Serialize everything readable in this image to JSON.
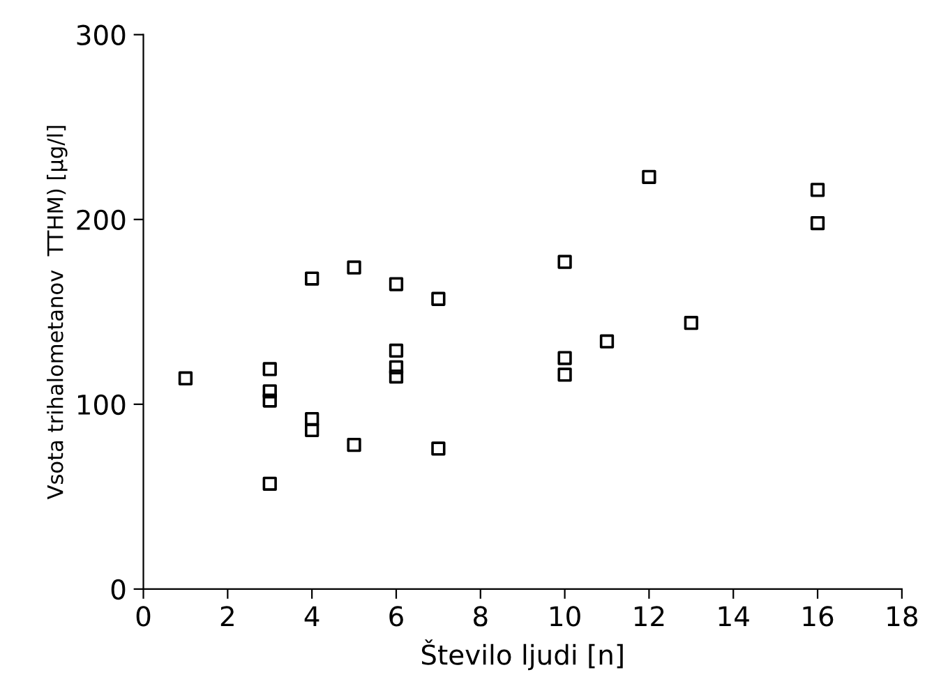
{
  "chart_data": {
    "type": "scatter",
    "xlabel": "Število ljudi [n]",
    "ylabel": "Vsota trihalometanov  TTHM) [µg/l]",
    "xlim": [
      0,
      18
    ],
    "xticks": [
      0,
      2,
      4,
      6,
      8,
      10,
      12,
      14,
      16,
      18
    ],
    "ylim": [
      0,
      300
    ],
    "yticks": [
      0,
      100,
      200,
      300
    ],
    "grid": false,
    "marker": "square",
    "series": [
      {
        "color": "#000000",
        "x": [
          1,
          3,
          3,
          3,
          3,
          4,
          4,
          4,
          5,
          5,
          6,
          6,
          6,
          6,
          7,
          7,
          10,
          10,
          10,
          11,
          12,
          13,
          16,
          16
        ],
        "values": [
          114,
          119,
          107,
          102,
          57,
          168,
          92,
          86,
          174,
          78,
          165,
          129,
          120,
          115,
          157,
          76,
          177,
          125,
          116,
          134,
          223,
          144,
          216,
          198
        ]
      }
    ]
  }
}
